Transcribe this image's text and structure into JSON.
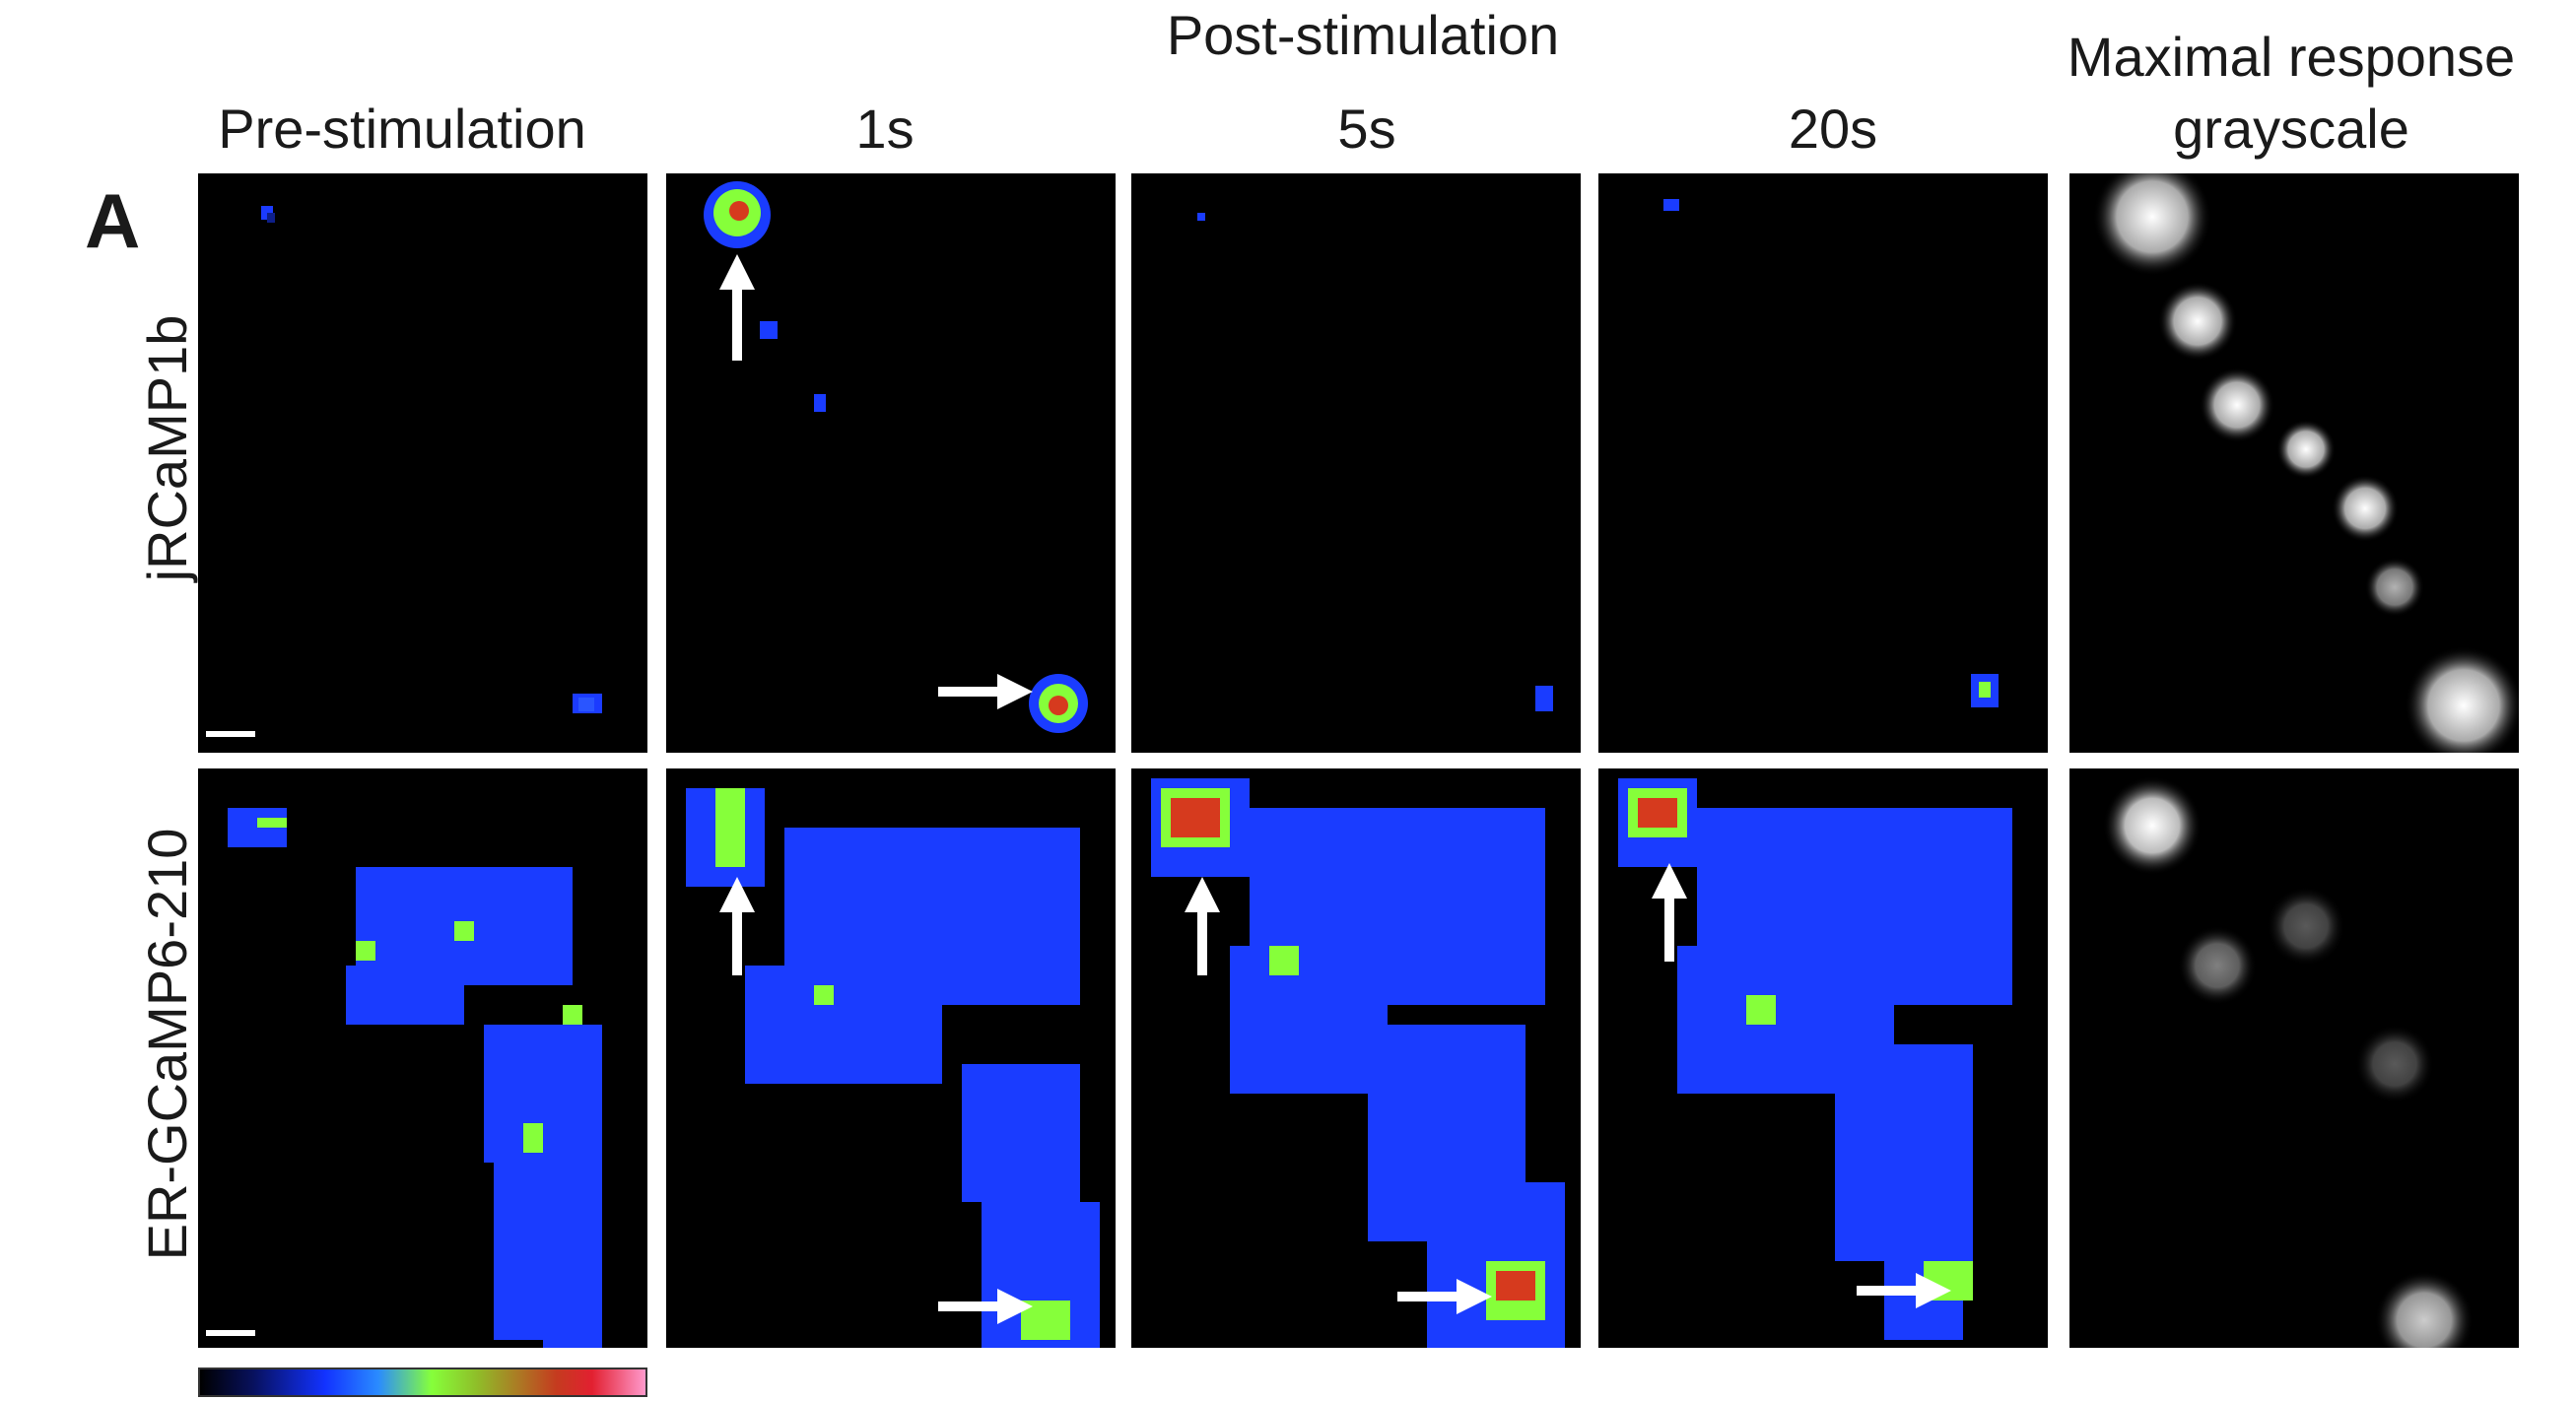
{
  "panel_letter": "A",
  "group_header": "Post-stimulation",
  "columns": [
    {
      "label": "Pre-stimulation"
    },
    {
      "label": "1s"
    },
    {
      "label": "5s"
    },
    {
      "label": "20s"
    },
    {
      "label_line1": "Maximal response",
      "label_line2": "grayscale"
    }
  ],
  "rows": [
    {
      "label": "jRCaMP1b"
    },
    {
      "label": "ER-GCaMP6-210"
    }
  ],
  "colorbar": {
    "colors": [
      "#000000",
      "#08115e",
      "#1232ff",
      "#2a8bff",
      "#86ff3a",
      "#8fbf29",
      "#c53b1f",
      "#e22030",
      "#ff99cc"
    ]
  }
}
